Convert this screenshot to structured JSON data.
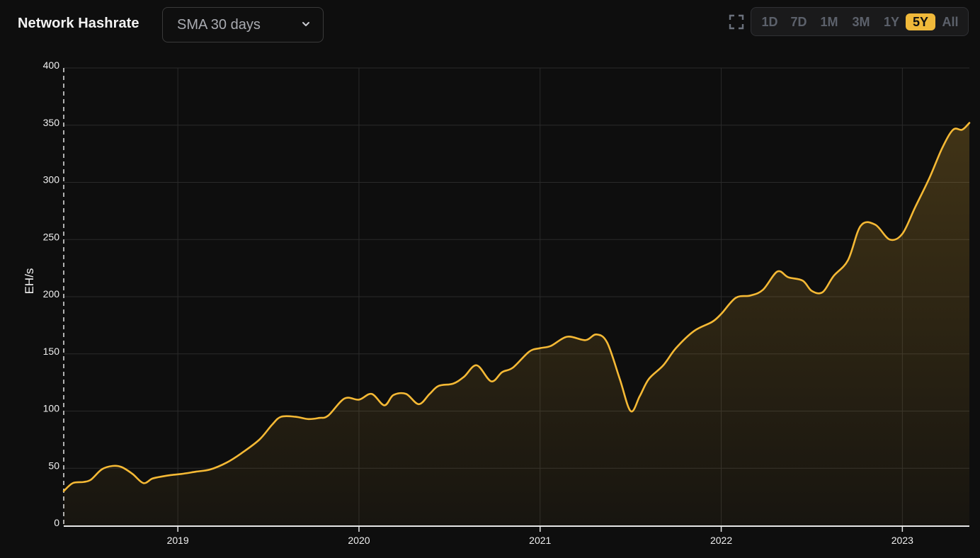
{
  "header": {
    "title": "Network Hashrate",
    "dropdown": {
      "selected": "SMA 30 days",
      "icon": "chevron-down-icon"
    },
    "expand_icon": "fullscreen-icon",
    "ranges": [
      {
        "label": "1D",
        "active": false
      },
      {
        "label": "7D",
        "active": false
      },
      {
        "label": "1M",
        "active": false
      },
      {
        "label": "3M",
        "active": false
      },
      {
        "label": "1Y",
        "active": false
      },
      {
        "label": "5Y",
        "active": true
      },
      {
        "label": "All",
        "active": false
      }
    ]
  },
  "colors": {
    "background": "#0e0e0e",
    "line": "#f5b935",
    "accent": "#f0b93a",
    "grid": "#2a2a2a",
    "inactive_text": "#5c616b"
  },
  "chart_data": {
    "type": "area",
    "title": "Network Hashrate",
    "subtitle": "SMA 30 days",
    "xlabel": "",
    "ylabel": "EH/s",
    "ylim": [
      0,
      400
    ],
    "yticks": [
      0,
      50,
      100,
      150,
      200,
      250,
      300,
      350,
      400
    ],
    "xticks": [
      "2019",
      "2020",
      "2021",
      "2022",
      "2023"
    ],
    "xlim": [
      2018.37,
      2023.37
    ],
    "grid": true,
    "legend": "none",
    "series": [
      {
        "name": "Network Hashrate (SMA 30 days)",
        "x": [
          2018.37,
          2018.42,
          2018.48,
          2018.52,
          2018.58,
          2018.64,
          2018.69,
          2018.75,
          2018.81,
          2018.86,
          2018.92,
          2018.96,
          2019.02,
          2019.1,
          2019.18,
          2019.27,
          2019.35,
          2019.45,
          2019.52,
          2019.57,
          2019.65,
          2019.72,
          2019.78,
          2019.83,
          2019.92,
          2020.0,
          2020.07,
          2020.14,
          2020.19,
          2020.26,
          2020.33,
          2020.39,
          2020.44,
          2020.52,
          2020.58,
          2020.65,
          2020.73,
          2020.79,
          2020.85,
          2020.94,
          2021.0,
          2021.06,
          2021.15,
          2021.25,
          2021.31,
          2021.37,
          2021.44,
          2021.5,
          2021.55,
          2021.6,
          2021.68,
          2021.75,
          2021.85,
          2021.95,
          2022.0,
          2022.08,
          2022.16,
          2022.23,
          2022.31,
          2022.37,
          2022.45,
          2022.5,
          2022.56,
          2022.62,
          2022.7,
          2022.77,
          2022.85,
          2022.93,
          2023.0,
          2023.07,
          2023.15,
          2023.22,
          2023.28,
          2023.33,
          2023.37
        ],
        "values": [
          30,
          37,
          38,
          40,
          49,
          52,
          51,
          45,
          37,
          41,
          43,
          44,
          45,
          47,
          49,
          55,
          63,
          75,
          88,
          95,
          95,
          93,
          94,
          96,
          111,
          110,
          115,
          105,
          114,
          115,
          106,
          115,
          122,
          124,
          130,
          140,
          126,
          134,
          138,
          152,
          155,
          157,
          165,
          162,
          167,
          160,
          128,
          100,
          113,
          128,
          140,
          155,
          170,
          178,
          185,
          199,
          201,
          206,
          222,
          217,
          214,
          205,
          204,
          218,
          232,
          262,
          263,
          250,
          255,
          278,
          304,
          330,
          346,
          346,
          352
        ]
      }
    ]
  }
}
